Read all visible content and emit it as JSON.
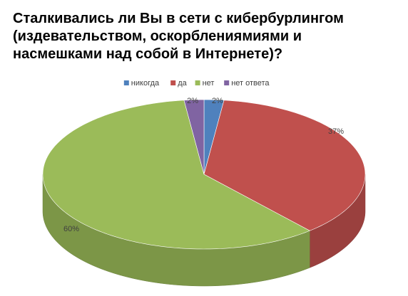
{
  "chart_data": {
    "type": "pie",
    "title": "Сталкивались ли Вы в сети с кибербурлингом (издевательством, оскорблениямиями и насмешками над собой в Интернете)?",
    "categories": [
      "никогда",
      "да",
      "нет",
      "нет ответа"
    ],
    "values": [
      2,
      37,
      60,
      2
    ],
    "value_labels": [
      "2%",
      "37%",
      "60%",
      "2%"
    ],
    "colors": [
      "#4f81bd",
      "#c0504d",
      "#9bbb59",
      "#8064a2"
    ],
    "legend": "top"
  }
}
